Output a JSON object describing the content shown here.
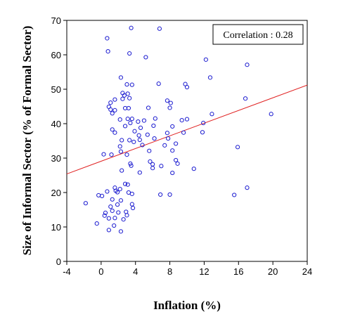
{
  "chart_data": {
    "type": "scatter",
    "title": "",
    "xlabel": "Inflation (%)",
    "ylabel": "Size of Informal Sector (% of Formal Sector)",
    "xlim": [
      -4,
      24
    ],
    "ylim": [
      0,
      70
    ],
    "xticks": [
      -4,
      0,
      4,
      8,
      12,
      16,
      20,
      24
    ],
    "yticks": [
      0,
      10,
      20,
      30,
      40,
      50,
      60,
      70
    ],
    "grid": false,
    "colors": {
      "points": "#1c1cd0",
      "fit_line": "#e02020",
      "axes": "#000000"
    },
    "annotation": "Correlation : 0.28",
    "annotation_position": "top-right",
    "fit_line": {
      "x": [
        -4,
        24
      ],
      "y": [
        25.4,
        51.2
      ]
    },
    "points": [
      [
        0.7,
        64.8
      ],
      [
        0.8,
        61.0
      ],
      [
        3.5,
        67.8
      ],
      [
        6.8,
        67.6
      ],
      [
        3.3,
        60.4
      ],
      [
        5.2,
        59.3
      ],
      [
        12.2,
        58.6
      ],
      [
        17.0,
        57.1
      ],
      [
        2.3,
        53.4
      ],
      [
        12.7,
        53.4
      ],
      [
        3.0,
        51.4
      ],
      [
        3.6,
        51.3
      ],
      [
        6.7,
        51.6
      ],
      [
        9.8,
        51.5
      ],
      [
        10.0,
        50.6
      ],
      [
        2.5,
        48.9
      ],
      [
        2.7,
        48.2
      ],
      [
        3.1,
        48.7
      ],
      [
        1.1,
        46.1
      ],
      [
        1.6,
        47.0
      ],
      [
        2.5,
        47.2
      ],
      [
        3.3,
        47.4
      ],
      [
        7.7,
        46.7
      ],
      [
        8.1,
        46.0
      ],
      [
        16.8,
        47.3
      ],
      [
        0.9,
        44.9
      ],
      [
        1.1,
        44.1
      ],
      [
        1.3,
        43.0
      ],
      [
        1.6,
        43.9
      ],
      [
        2.8,
        44.5
      ],
      [
        3.2,
        44.5
      ],
      [
        5.5,
        44.6
      ],
      [
        8.0,
        44.6
      ],
      [
        12.9,
        42.8
      ],
      [
        19.8,
        42.8
      ],
      [
        2.2,
        41.2
      ],
      [
        3.1,
        41.4
      ],
      [
        3.6,
        41.4
      ],
      [
        4.3,
        40.6
      ],
      [
        5.0,
        40.9
      ],
      [
        6.3,
        41.5
      ],
      [
        9.4,
        41.0
      ],
      [
        10.0,
        41.3
      ],
      [
        11.9,
        40.2
      ],
      [
        3.4,
        40.2
      ],
      [
        1.3,
        38.3
      ],
      [
        2.8,
        39.3
      ],
      [
        3.9,
        37.8
      ],
      [
        4.6,
        38.8
      ],
      [
        6.1,
        39.4
      ],
      [
        8.3,
        39.2
      ],
      [
        9.6,
        37.4
      ],
      [
        11.8,
        37.5
      ],
      [
        1.6,
        37.4
      ],
      [
        4.4,
        36.6
      ],
      [
        5.4,
        36.8
      ],
      [
        7.7,
        37.3
      ],
      [
        2.4,
        35.2
      ],
      [
        3.3,
        35.2
      ],
      [
        4.5,
        35.3
      ],
      [
        6.2,
        35.7
      ],
      [
        7.8,
        35.7
      ],
      [
        8.7,
        34.2
      ],
      [
        2.2,
        33.4
      ],
      [
        3.8,
        34.7
      ],
      [
        4.8,
        33.8
      ],
      [
        7.4,
        33.7
      ],
      [
        15.9,
        33.2
      ],
      [
        0.3,
        31.1
      ],
      [
        1.2,
        31.0
      ],
      [
        2.3,
        31.9
      ],
      [
        3.0,
        31.0
      ],
      [
        5.6,
        32.1
      ],
      [
        8.3,
        32.2
      ],
      [
        5.7,
        29.0
      ],
      [
        6.0,
        28.2
      ],
      [
        3.4,
        28.4
      ],
      [
        3.5,
        27.8
      ],
      [
        8.7,
        29.4
      ],
      [
        8.9,
        28.4
      ],
      [
        6.0,
        27.1
      ],
      [
        7.0,
        27.7
      ],
      [
        10.8,
        26.9
      ],
      [
        2.4,
        26.4
      ],
      [
        4.5,
        25.8
      ],
      [
        8.3,
        25.7
      ],
      [
        2.8,
        22.5
      ],
      [
        3.1,
        22.3
      ],
      [
        1.6,
        21.4
      ],
      [
        1.7,
        20.5
      ],
      [
        1.9,
        20.1
      ],
      [
        2.2,
        21.0
      ],
      [
        3.2,
        20.0
      ],
      [
        3.6,
        19.6
      ],
      [
        0.7,
        20.3
      ],
      [
        -0.3,
        19.2
      ],
      [
        0.1,
        19.0
      ],
      [
        6.9,
        19.4
      ],
      [
        8.0,
        19.4
      ],
      [
        15.5,
        19.3
      ],
      [
        17.0,
        21.4
      ],
      [
        1.3,
        18.0
      ],
      [
        2.3,
        17.7
      ],
      [
        1.9,
        16.5
      ],
      [
        1.1,
        15.9
      ],
      [
        3.6,
        16.6
      ],
      [
        3.7,
        15.5
      ],
      [
        -1.8,
        16.9
      ],
      [
        1.3,
        14.7
      ],
      [
        2.0,
        14.2
      ],
      [
        2.9,
        14.4
      ],
      [
        3.0,
        13.4
      ],
      [
        0.4,
        13.3
      ],
      [
        0.5,
        14.1
      ],
      [
        0.9,
        12.5
      ],
      [
        1.6,
        12.6
      ],
      [
        2.6,
        12.2
      ],
      [
        -0.5,
        11.0
      ],
      [
        1.5,
        10.4
      ],
      [
        0.9,
        9.1
      ],
      [
        2.3,
        8.7
      ]
    ]
  }
}
